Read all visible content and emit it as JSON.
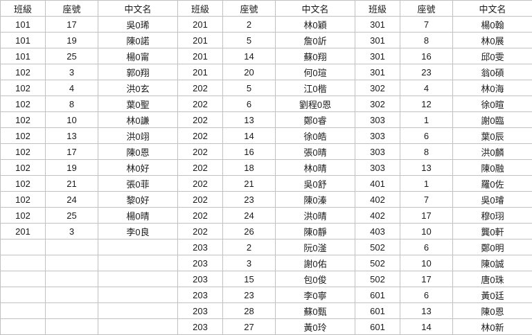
{
  "table": {
    "headers": [
      "班級",
      "座號",
      "中文名"
    ],
    "groups": [
      {
        "rows": [
          {
            "class": "101",
            "seat": "17",
            "name": "吳0琋"
          },
          {
            "class": "101",
            "seat": "19",
            "name": "陳0諾"
          },
          {
            "class": "101",
            "seat": "25",
            "name": "楊0甯"
          },
          {
            "class": "102",
            "seat": "3",
            "name": "郭0翔"
          },
          {
            "class": "102",
            "seat": "4",
            "name": "洪0玄"
          },
          {
            "class": "102",
            "seat": "8",
            "name": "葉0聖"
          },
          {
            "class": "102",
            "seat": "10",
            "name": "林0謙"
          },
          {
            "class": "102",
            "seat": "13",
            "name": "洪0翊"
          },
          {
            "class": "102",
            "seat": "17",
            "name": "陳0恩"
          },
          {
            "class": "102",
            "seat": "19",
            "name": "林0好"
          },
          {
            "class": "102",
            "seat": "21",
            "name": "張0菲"
          },
          {
            "class": "102",
            "seat": "24",
            "name": "黎0好"
          },
          {
            "class": "102",
            "seat": "25",
            "name": "楊0晴"
          },
          {
            "class": "201",
            "seat": "3",
            "name": "李0良"
          },
          {
            "class": "",
            "seat": "",
            "name": ""
          },
          {
            "class": "",
            "seat": "",
            "name": ""
          },
          {
            "class": "",
            "seat": "",
            "name": ""
          },
          {
            "class": "",
            "seat": "",
            "name": ""
          },
          {
            "class": "",
            "seat": "",
            "name": ""
          },
          {
            "class": "",
            "seat": "",
            "name": ""
          }
        ]
      },
      {
        "rows": [
          {
            "class": "201",
            "seat": "2",
            "name": "林0穎"
          },
          {
            "class": "201",
            "seat": "5",
            "name": "詹0訢"
          },
          {
            "class": "201",
            "seat": "14",
            "name": "蘇0翔"
          },
          {
            "class": "201",
            "seat": "20",
            "name": "何0瑄"
          },
          {
            "class": "202",
            "seat": "5",
            "name": "江0楷"
          },
          {
            "class": "202",
            "seat": "6",
            "name": "劉程0恩"
          },
          {
            "class": "202",
            "seat": "13",
            "name": "鄭0睿"
          },
          {
            "class": "202",
            "seat": "14",
            "name": "徐0皓"
          },
          {
            "class": "202",
            "seat": "16",
            "name": "張0晴"
          },
          {
            "class": "202",
            "seat": "18",
            "name": "林0晴"
          },
          {
            "class": "202",
            "seat": "21",
            "name": "吳0舒"
          },
          {
            "class": "202",
            "seat": "23",
            "name": "陳0溱"
          },
          {
            "class": "202",
            "seat": "24",
            "name": "洪0晴"
          },
          {
            "class": "202",
            "seat": "26",
            "name": "陳0靜"
          },
          {
            "class": "203",
            "seat": "2",
            "name": "阮0滏"
          },
          {
            "class": "203",
            "seat": "3",
            "name": "謝0佑"
          },
          {
            "class": "203",
            "seat": "15",
            "name": "包0俊"
          },
          {
            "class": "203",
            "seat": "23",
            "name": "李0寧"
          },
          {
            "class": "203",
            "seat": "28",
            "name": "蘇0甄"
          },
          {
            "class": "203",
            "seat": "27",
            "name": "黃0玲"
          }
        ]
      },
      {
        "rows": [
          {
            "class": "301",
            "seat": "7",
            "name": "楊0翰"
          },
          {
            "class": "301",
            "seat": "8",
            "name": "林0展"
          },
          {
            "class": "301",
            "seat": "16",
            "name": "邱0雯"
          },
          {
            "class": "301",
            "seat": "23",
            "name": "翁0碩"
          },
          {
            "class": "302",
            "seat": "4",
            "name": "林0海"
          },
          {
            "class": "302",
            "seat": "12",
            "name": "徐0暄"
          },
          {
            "class": "303",
            "seat": "1",
            "name": "謝0臨"
          },
          {
            "class": "303",
            "seat": "6",
            "name": "葉0辰"
          },
          {
            "class": "303",
            "seat": "8",
            "name": "洪0麟"
          },
          {
            "class": "303",
            "seat": "13",
            "name": "陳0融"
          },
          {
            "class": "401",
            "seat": "1",
            "name": "羅0佐"
          },
          {
            "class": "402",
            "seat": "7",
            "name": "吳0璿"
          },
          {
            "class": "402",
            "seat": "17",
            "name": "穆0珝"
          },
          {
            "class": "403",
            "seat": "10",
            "name": "龔0軒"
          },
          {
            "class": "502",
            "seat": "6",
            "name": "鄭0明"
          },
          {
            "class": "502",
            "seat": "10",
            "name": "陳0誠"
          },
          {
            "class": "502",
            "seat": "17",
            "name": "唐0珠"
          },
          {
            "class": "601",
            "seat": "6",
            "name": "黃0廷"
          },
          {
            "class": "601",
            "seat": "13",
            "name": "陳0恩"
          },
          {
            "class": "601",
            "seat": "14",
            "name": "林0新"
          }
        ]
      }
    ]
  },
  "colors": {
    "border": "#c0c0c0",
    "text": "#1a1a1a",
    "background": "#ffffff"
  }
}
